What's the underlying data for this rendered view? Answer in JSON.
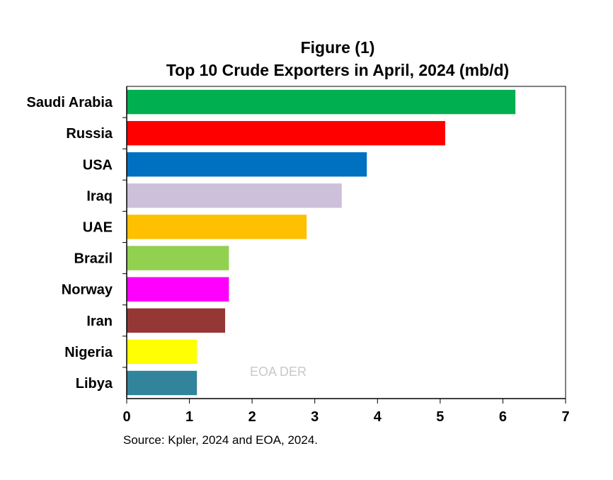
{
  "chart_data": {
    "type": "bar",
    "orientation": "horizontal",
    "title": "Figure (1)",
    "subtitle": "Top 10 Crude Exporters in April, 2024 (mb/d)",
    "categories": [
      "Saudi Arabia",
      "Russia",
      "USA",
      "Iraq",
      "UAE",
      "Brazil",
      "Norway",
      "Iran",
      "Nigeria",
      "Libya"
    ],
    "values": [
      6.2,
      5.08,
      3.83,
      3.43,
      2.87,
      1.63,
      1.63,
      1.57,
      1.12,
      1.12
    ],
    "colors": [
      "#00b050",
      "#ff0000",
      "#0070c0",
      "#ccc0da",
      "#ffc000",
      "#92d050",
      "#ff00ff",
      "#953735",
      "#ffff00",
      "#31849b"
    ],
    "xlim": [
      0,
      7
    ],
    "xticks": [
      "0",
      "1",
      "2",
      "3",
      "4",
      "5",
      "6",
      "7"
    ],
    "xlabel": "",
    "ylabel": "",
    "grid": false,
    "watermark": "EOA DER",
    "source": "Source: Kpler, 2024 and EOA, 2024."
  }
}
